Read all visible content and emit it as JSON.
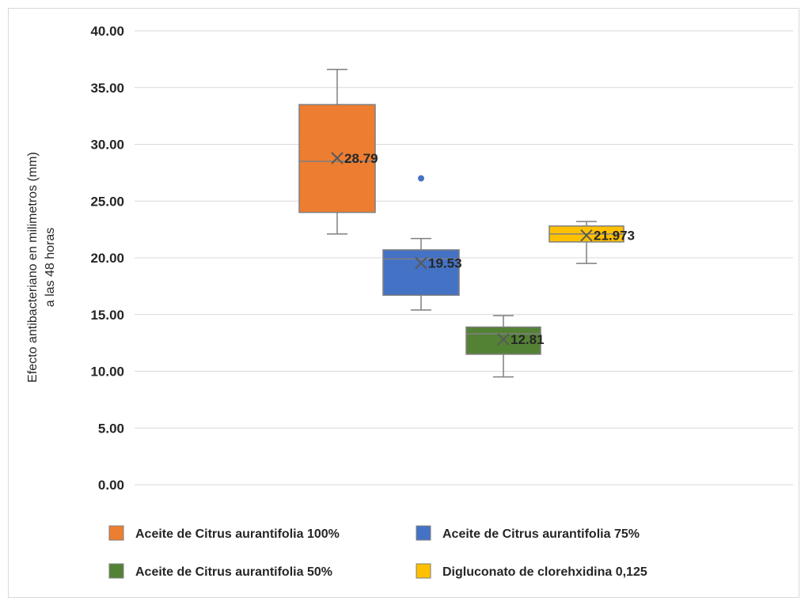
{
  "chart_data": {
    "type": "box",
    "ylabel": [
      "Efecto antibacteriano en milimetros  (mm)",
      "a las 48 horas"
    ],
    "ylim": [
      0,
      40
    ],
    "ytick_step": 5,
    "ytick_labels": [
      "0.00",
      "5.00",
      "10.00",
      "15.00",
      "20.00",
      "25.00",
      "30.00",
      "35.00",
      "40.00"
    ],
    "grid": true,
    "legend_position": "bottom",
    "series": [
      {
        "name": "Aceite de Citrus aurantifolia 100%",
        "color": "#ED7D31",
        "min": 22.1,
        "q1": 24.0,
        "median": 28.5,
        "q3": 33.5,
        "max": 36.6,
        "mean": 28.79,
        "mean_label": "28.79",
        "outliers": []
      },
      {
        "name": "Aceite de Citrus aurantifolia 75%",
        "color": "#4472C4",
        "min": 15.4,
        "q1": 16.7,
        "median": 19.9,
        "q3": 20.7,
        "max": 21.7,
        "mean": 19.53,
        "mean_label": "19.53",
        "outliers": [
          27.0
        ]
      },
      {
        "name": "Aceite de Citrus aurantifolia 50%",
        "color": "#548235",
        "min": 9.5,
        "q1": 11.5,
        "median": 13.3,
        "q3": 13.9,
        "max": 14.9,
        "mean": 12.81,
        "mean_label": "12.81",
        "outliers": []
      },
      {
        "name": "Digluconato de clorehxidina 0,125",
        "color": "#FFC000",
        "min": 19.5,
        "q1": 21.4,
        "median": 22.1,
        "q3": 22.8,
        "max": 23.2,
        "mean": 21.973,
        "mean_label": "21.973",
        "outliers": []
      }
    ]
  }
}
